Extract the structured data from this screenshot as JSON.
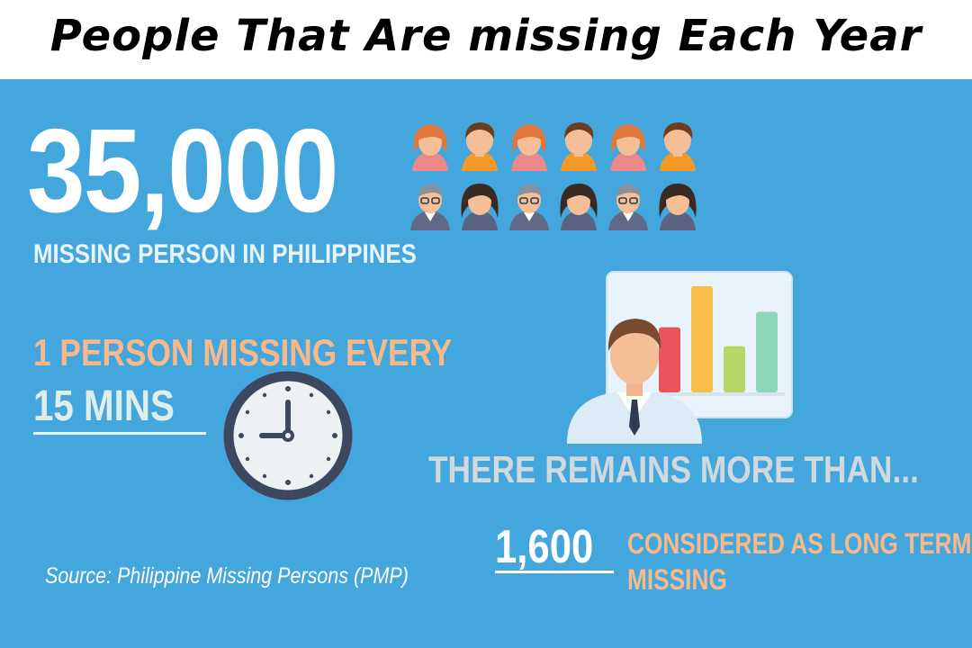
{
  "header": {
    "title": "People That Are missing Each Year"
  },
  "stats": {
    "total_missing": "35,000",
    "total_missing_label": "MISSING PERSON IN PHILIPPINES",
    "frequency_line": "1 PERSON MISSING EVERY",
    "frequency_interval": "15 MINS",
    "remains_line": "THERE REMAINS MORE THAN...",
    "long_term_count": "1,600",
    "long_term_label_line1": "CONSIDERED AS LONG TERM",
    "long_term_label_line2": "MISSING"
  },
  "source": "Source: Philippine Missing Persons (PMP)",
  "icons": {
    "people": [
      "woman-avatar-icon",
      "man-avatar-icon",
      "woman-avatar-icon",
      "man-avatar-icon",
      "woman-avatar-icon",
      "man-avatar-icon",
      "man-glasses-avatar-icon",
      "woman-dark-hair-avatar-icon",
      "man-glasses-avatar-icon",
      "woman-dark-hair-avatar-icon",
      "man-glasses-avatar-icon",
      "woman-dark-hair-avatar-icon"
    ],
    "clock": "clock-icon",
    "presenter": "presenter-with-bar-chart-icon"
  },
  "colors": {
    "background": "#43a7dd",
    "accent_orange": "#f7b98a",
    "text_white": "#ffffff"
  },
  "presenter_chart": {
    "bars": [
      {
        "color": "#e9545d",
        "value": 0.38
      },
      {
        "color": "#f7bd4b",
        "value": 0.62
      },
      {
        "color": "#b3d865",
        "value": 0.27
      },
      {
        "color": "#8dd6b9",
        "value": 0.47
      }
    ]
  }
}
